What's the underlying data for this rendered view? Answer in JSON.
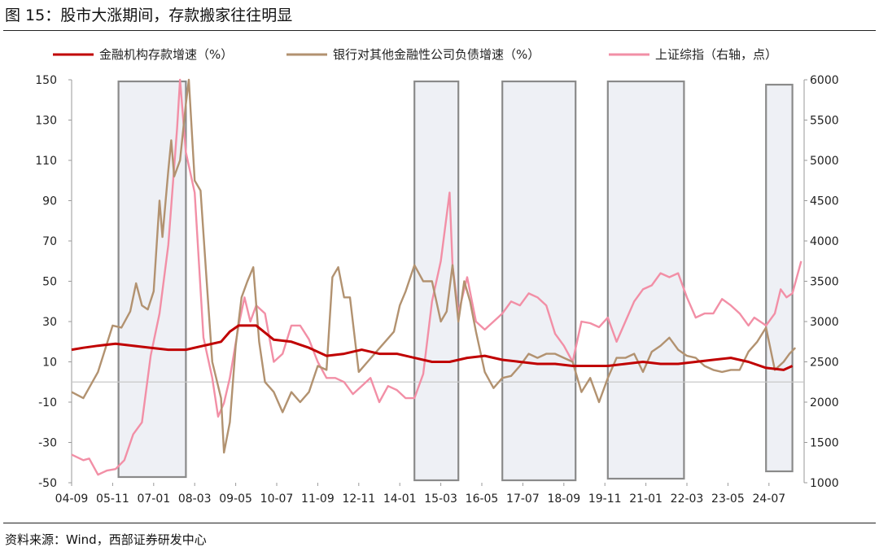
{
  "figure_title": "图 15：股市大涨期间，存款搬家往往明显",
  "source_note": "资料来源：Wind，西部证券研发中心",
  "chart_data": {
    "type": "line",
    "title": "图 15：股市大涨期间，存款搬家往往明显",
    "x_tick_labels": [
      "04-09",
      "05-11",
      "07-01",
      "08-03",
      "09-05",
      "10-07",
      "11-09",
      "12-11",
      "14-01",
      "15-03",
      "16-05",
      "17-07",
      "18-09",
      "19-11",
      "21-01",
      "22-03",
      "23-05",
      "24-07"
    ],
    "y_left": {
      "range": [
        -50,
        150
      ],
      "ticks": [
        150,
        130,
        110,
        90,
        70,
        50,
        30,
        10,
        -10,
        -30,
        -50
      ]
    },
    "y_right": {
      "range": [
        1000,
        6000
      ],
      "ticks": [
        6000,
        5500,
        5000,
        4500,
        4000,
        3500,
        3000,
        2500,
        2000,
        1500,
        1000
      ]
    },
    "legend_position": "top",
    "highlight_periods": [
      [
        "2006-01",
        "2007-12"
      ],
      [
        "2014-06",
        "2015-09"
      ],
      [
        "2016-12",
        "2019-01"
      ],
      [
        "2019-12",
        "2022-02"
      ],
      [
        "2024-06",
        "2025-03"
      ]
    ],
    "series": [
      {
        "name": "金融机构存款增速（%）",
        "color": "#c00000",
        "axis": "left",
        "points": [
          [
            "2004-09",
            16
          ],
          [
            "2005-01",
            17
          ],
          [
            "2005-06",
            18
          ],
          [
            "2005-12",
            19
          ],
          [
            "2006-06",
            18
          ],
          [
            "2006-12",
            17
          ],
          [
            "2007-06",
            16
          ],
          [
            "2007-12",
            16
          ],
          [
            "2008-06",
            18
          ],
          [
            "2008-12",
            20
          ],
          [
            "2009-03",
            25
          ],
          [
            "2009-06",
            28
          ],
          [
            "2009-12",
            28
          ],
          [
            "2010-06",
            21
          ],
          [
            "2010-12",
            20
          ],
          [
            "2011-06",
            17
          ],
          [
            "2011-12",
            13
          ],
          [
            "2012-06",
            14
          ],
          [
            "2012-12",
            16
          ],
          [
            "2013-06",
            14
          ],
          [
            "2013-12",
            14
          ],
          [
            "2014-06",
            12
          ],
          [
            "2014-12",
            10
          ],
          [
            "2015-06",
            10
          ],
          [
            "2015-12",
            12
          ],
          [
            "2016-06",
            13
          ],
          [
            "2016-12",
            11
          ],
          [
            "2017-06",
            10
          ],
          [
            "2017-12",
            9
          ],
          [
            "2018-06",
            9
          ],
          [
            "2018-12",
            8
          ],
          [
            "2019-06",
            8
          ],
          [
            "2019-12",
            8
          ],
          [
            "2020-06",
            9
          ],
          [
            "2020-12",
            10
          ],
          [
            "2021-06",
            9
          ],
          [
            "2021-12",
            9
          ],
          [
            "2022-06",
            10
          ],
          [
            "2022-12",
            11
          ],
          [
            "2023-06",
            12
          ],
          [
            "2023-12",
            10
          ],
          [
            "2024-06",
            7
          ],
          [
            "2024-12",
            6
          ],
          [
            "2025-03",
            8
          ]
        ]
      },
      {
        "name": "银行对其他金融性公司负债增速（%）",
        "color": "#b29270",
        "axis": "left",
        "points": [
          [
            "2004-09",
            -5
          ],
          [
            "2005-01",
            -8
          ],
          [
            "2005-06",
            5
          ],
          [
            "2005-11",
            28
          ],
          [
            "2006-02",
            27
          ],
          [
            "2006-05",
            35
          ],
          [
            "2006-07",
            49
          ],
          [
            "2006-09",
            38
          ],
          [
            "2006-11",
            36
          ],
          [
            "2007-01",
            45
          ],
          [
            "2007-03",
            90
          ],
          [
            "2007-04",
            72
          ],
          [
            "2007-06",
            105
          ],
          [
            "2007-07",
            120
          ],
          [
            "2007-08",
            102
          ],
          [
            "2007-10",
            110
          ],
          [
            "2007-12",
            138
          ],
          [
            "2008-01",
            160
          ],
          [
            "2008-03",
            100
          ],
          [
            "2008-05",
            95
          ],
          [
            "2008-07",
            52
          ],
          [
            "2008-09",
            10
          ],
          [
            "2008-12",
            -8
          ],
          [
            "2009-01",
            -35
          ],
          [
            "2009-03",
            -20
          ],
          [
            "2009-05",
            18
          ],
          [
            "2009-07",
            42
          ],
          [
            "2009-09",
            50
          ],
          [
            "2009-11",
            57
          ],
          [
            "2010-01",
            20
          ],
          [
            "2010-03",
            0
          ],
          [
            "2010-06",
            -5
          ],
          [
            "2010-09",
            -15
          ],
          [
            "2010-12",
            -5
          ],
          [
            "2011-03",
            -10
          ],
          [
            "2011-06",
            -5
          ],
          [
            "2011-09",
            8
          ],
          [
            "2011-12",
            6
          ],
          [
            "2012-02",
            52
          ],
          [
            "2012-04",
            57
          ],
          [
            "2012-06",
            42
          ],
          [
            "2012-08",
            42
          ],
          [
            "2012-11",
            5
          ],
          [
            "2013-02",
            10
          ],
          [
            "2013-05",
            15
          ],
          [
            "2013-08",
            20
          ],
          [
            "2013-11",
            25
          ],
          [
            "2014-01",
            38
          ],
          [
            "2014-03",
            45
          ],
          [
            "2014-06",
            58
          ],
          [
            "2014-09",
            50
          ],
          [
            "2014-12",
            50
          ],
          [
            "2015-03",
            30
          ],
          [
            "2015-05",
            35
          ],
          [
            "2015-07",
            58
          ],
          [
            "2015-09",
            30
          ],
          [
            "2015-11",
            50
          ],
          [
            "2016-01",
            40
          ],
          [
            "2016-03",
            25
          ],
          [
            "2016-06",
            5
          ],
          [
            "2016-09",
            -3
          ],
          [
            "2016-12",
            2
          ],
          [
            "2017-03",
            3
          ],
          [
            "2017-06",
            8
          ],
          [
            "2017-09",
            14
          ],
          [
            "2017-12",
            12
          ],
          [
            "2018-03",
            14
          ],
          [
            "2018-06",
            14
          ],
          [
            "2018-09",
            12
          ],
          [
            "2018-12",
            10
          ],
          [
            "2019-03",
            -5
          ],
          [
            "2019-06",
            2
          ],
          [
            "2019-09",
            -10
          ],
          [
            "2019-12",
            2
          ],
          [
            "2020-03",
            12
          ],
          [
            "2020-06",
            12
          ],
          [
            "2020-09",
            14
          ],
          [
            "2020-12",
            5
          ],
          [
            "2021-03",
            15
          ],
          [
            "2021-06",
            18
          ],
          [
            "2021-09",
            22
          ],
          [
            "2021-12",
            16
          ],
          [
            "2022-03",
            13
          ],
          [
            "2022-06",
            12
          ],
          [
            "2022-09",
            8
          ],
          [
            "2022-12",
            6
          ],
          [
            "2023-03",
            5
          ],
          [
            "2023-06",
            6
          ],
          [
            "2023-09",
            6
          ],
          [
            "2023-12",
            15
          ],
          [
            "2024-03",
            20
          ],
          [
            "2024-06",
            27
          ],
          [
            "2024-09",
            6
          ],
          [
            "2024-12",
            10
          ],
          [
            "2025-02",
            14
          ],
          [
            "2025-04",
            17
          ]
        ]
      },
      {
        "name": "上证综指（右轴，点）",
        "color": "#f28fa6",
        "axis": "right",
        "points": [
          [
            "2004-09",
            1350
          ],
          [
            "2005-01",
            1280
          ],
          [
            "2005-03",
            1300
          ],
          [
            "2005-06",
            1100
          ],
          [
            "2005-09",
            1150
          ],
          [
            "2005-12",
            1170
          ],
          [
            "2006-03",
            1280
          ],
          [
            "2006-06",
            1600
          ],
          [
            "2006-09",
            1750
          ],
          [
            "2006-12",
            2580
          ],
          [
            "2007-03",
            3100
          ],
          [
            "2007-06",
            3950
          ],
          [
            "2007-09",
            5400
          ],
          [
            "2007-10",
            6000
          ],
          [
            "2007-12",
            5100
          ],
          [
            "2008-03",
            4600
          ],
          [
            "2008-06",
            2800
          ],
          [
            "2008-09",
            2300
          ],
          [
            "2008-11",
            1820
          ],
          [
            "2009-01",
            1990
          ],
          [
            "2009-03",
            2300
          ],
          [
            "2009-06",
            2950
          ],
          [
            "2009-08",
            3300
          ],
          [
            "2009-10",
            3000
          ],
          [
            "2009-12",
            3200
          ],
          [
            "2010-03",
            3100
          ],
          [
            "2010-06",
            2500
          ],
          [
            "2010-09",
            2600
          ],
          [
            "2010-12",
            2950
          ],
          [
            "2011-03",
            2950
          ],
          [
            "2011-06",
            2780
          ],
          [
            "2011-09",
            2500
          ],
          [
            "2011-12",
            2300
          ],
          [
            "2012-03",
            2300
          ],
          [
            "2012-06",
            2250
          ],
          [
            "2012-09",
            2100
          ],
          [
            "2012-12",
            2200
          ],
          [
            "2013-03",
            2300
          ],
          [
            "2013-06",
            2000
          ],
          [
            "2013-09",
            2200
          ],
          [
            "2013-12",
            2150
          ],
          [
            "2014-03",
            2050
          ],
          [
            "2014-06",
            2050
          ],
          [
            "2014-09",
            2350
          ],
          [
            "2014-12",
            3250
          ],
          [
            "2015-03",
            3750
          ],
          [
            "2015-06",
            4600
          ],
          [
            "2015-07",
            3700
          ],
          [
            "2015-09",
            3100
          ],
          [
            "2015-12",
            3550
          ],
          [
            "2016-03",
            3000
          ],
          [
            "2016-06",
            2900
          ],
          [
            "2016-09",
            3000
          ],
          [
            "2016-12",
            3100
          ],
          [
            "2017-03",
            3250
          ],
          [
            "2017-06",
            3200
          ],
          [
            "2017-09",
            3350
          ],
          [
            "2017-12",
            3300
          ],
          [
            "2018-03",
            3200
          ],
          [
            "2018-06",
            2850
          ],
          [
            "2018-09",
            2700
          ],
          [
            "2018-12",
            2500
          ],
          [
            "2019-03",
            3000
          ],
          [
            "2019-06",
            2980
          ],
          [
            "2019-09",
            2930
          ],
          [
            "2019-12",
            3050
          ],
          [
            "2020-03",
            2750
          ],
          [
            "2020-06",
            3000
          ],
          [
            "2020-09",
            3250
          ],
          [
            "2020-12",
            3400
          ],
          [
            "2021-03",
            3450
          ],
          [
            "2021-06",
            3600
          ],
          [
            "2021-09",
            3550
          ],
          [
            "2021-12",
            3600
          ],
          [
            "2022-03",
            3300
          ],
          [
            "2022-06",
            3050
          ],
          [
            "2022-09",
            3100
          ],
          [
            "2022-12",
            3100
          ],
          [
            "2023-03",
            3280
          ],
          [
            "2023-06",
            3200
          ],
          [
            "2023-09",
            3100
          ],
          [
            "2023-12",
            2950
          ],
          [
            "2024-02",
            3050
          ],
          [
            "2024-06",
            2950
          ],
          [
            "2024-09",
            3100
          ],
          [
            "2024-11",
            3400
          ],
          [
            "2025-01",
            3300
          ],
          [
            "2025-03",
            3350
          ],
          [
            "2025-06",
            3750
          ]
        ]
      }
    ]
  }
}
